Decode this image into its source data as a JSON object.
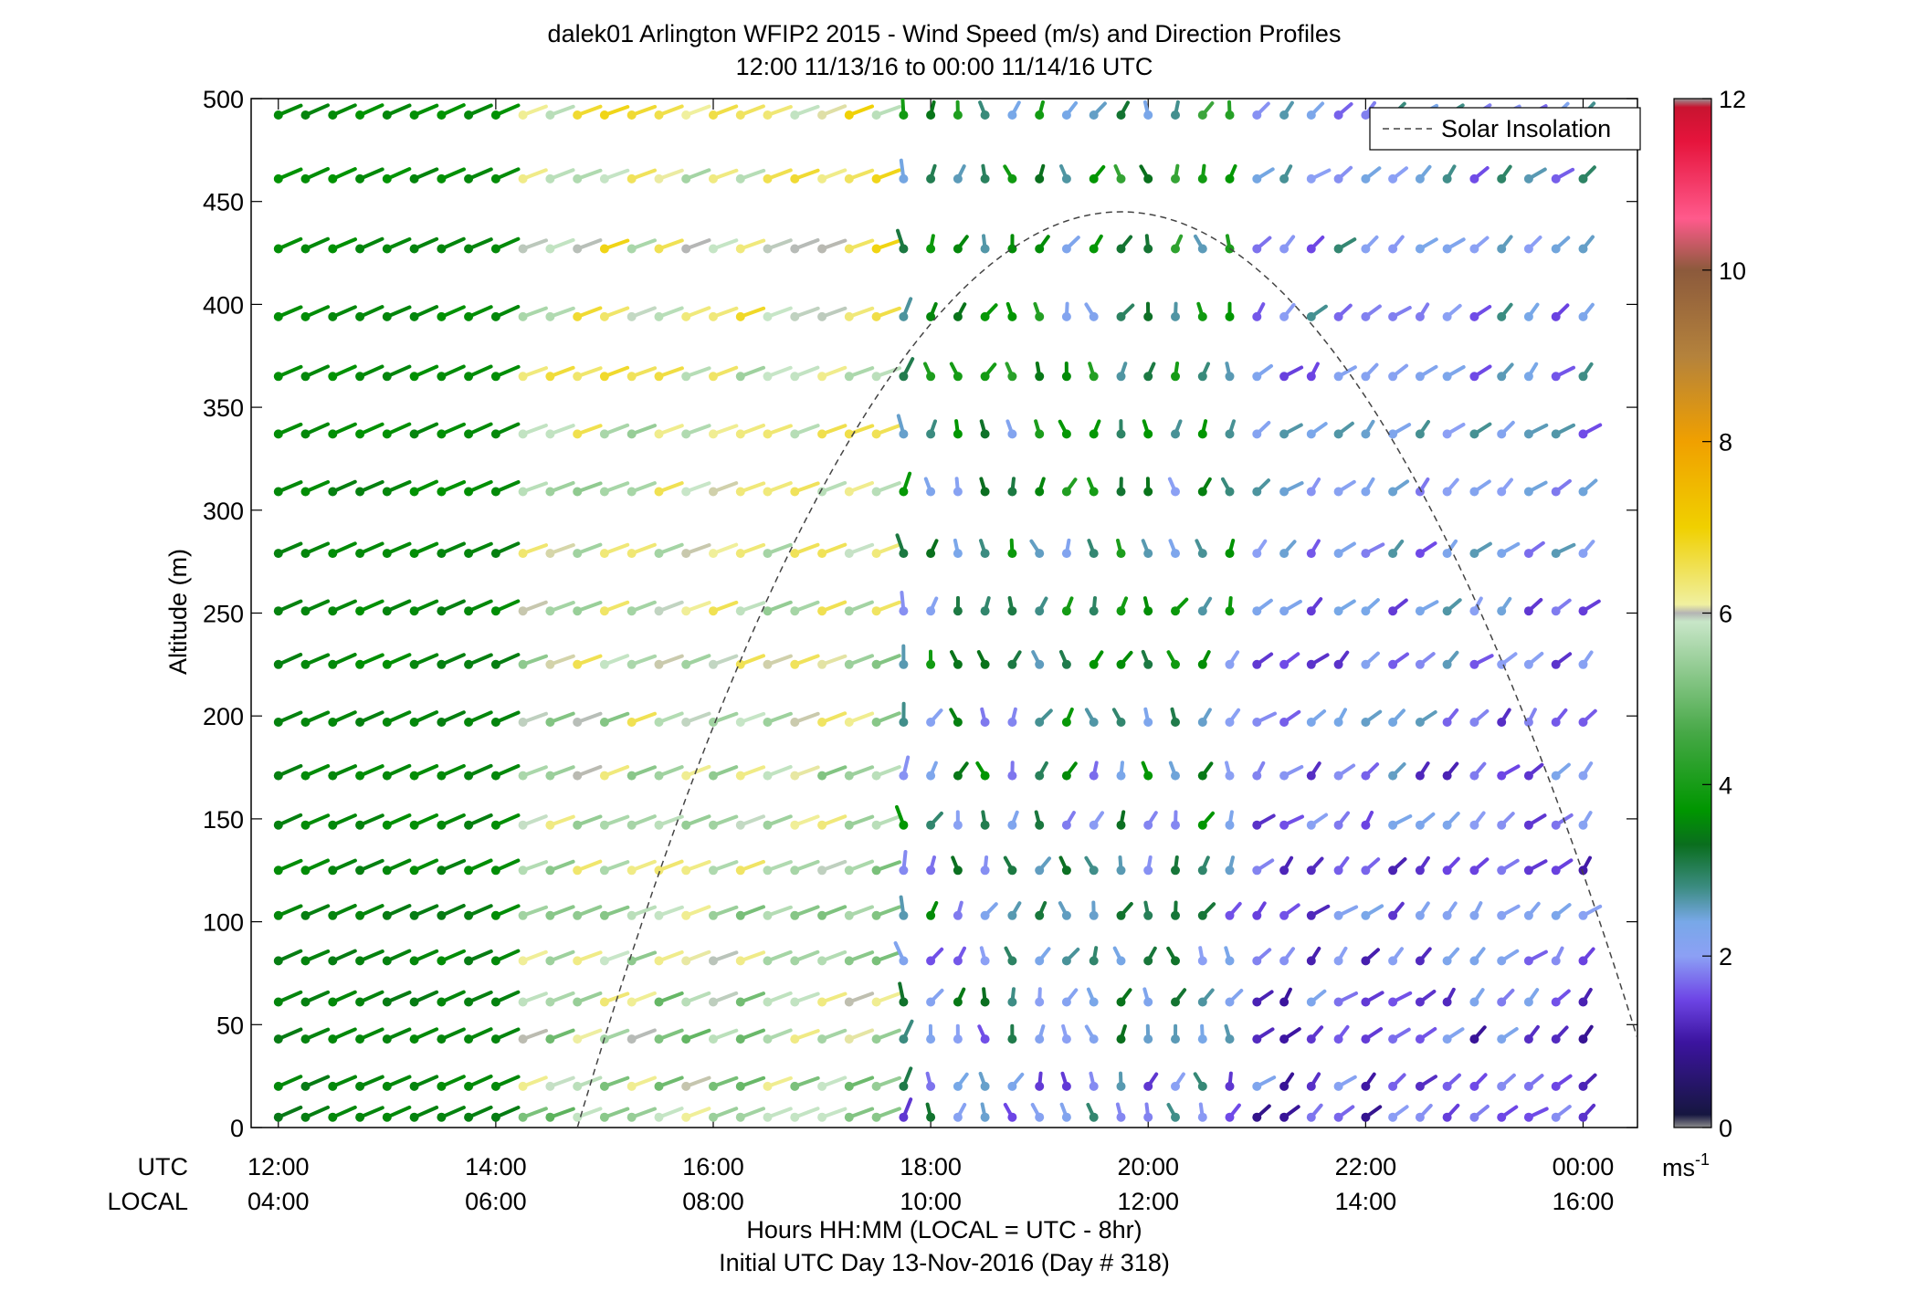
{
  "chart_data": {
    "type": "scatter",
    "subtype": "wind-barb-profile",
    "title": "dalek01 Arlington WFIP2 2015 - Wind Speed (m/s) and Direction Profiles",
    "subtitle": "12:00 11/13/16 to 00:00 11/14/16  UTC",
    "xlabel": "Hours HH:MM  (LOCAL = UTC - 8hr)",
    "xlabel2": "Initial UTC Day 13-Nov-2016 (Day # 318)",
    "ylabel": "Altitude (m)",
    "axis_rows": {
      "utc": "UTC",
      "local": "LOCAL"
    },
    "xlim": [
      11.75,
      24.5
    ],
    "ylim": [
      0,
      500
    ],
    "x_ticks": [
      {
        "value": 12,
        "utc": "12:00",
        "local": "04:00"
      },
      {
        "value": 14,
        "utc": "14:00",
        "local": "06:00"
      },
      {
        "value": 16,
        "utc": "16:00",
        "local": "08:00"
      },
      {
        "value": 18,
        "utc": "18:00",
        "local": "10:00"
      },
      {
        "value": 20,
        "utc": "20:00",
        "local": "12:00"
      },
      {
        "value": 22,
        "utc": "22:00",
        "local": "14:00"
      },
      {
        "value": 24,
        "utc": "00:00",
        "local": "16:00"
      }
    ],
    "y_ticks": [
      {
        "value": 0,
        "label": "0"
      },
      {
        "value": 50,
        "label": "50"
      },
      {
        "value": 100,
        "label": "100"
      },
      {
        "value": 150,
        "label": "150"
      },
      {
        "value": 200,
        "label": "200"
      },
      {
        "value": 250,
        "label": "250"
      },
      {
        "value": 300,
        "label": "300"
      },
      {
        "value": 350,
        "label": "350"
      },
      {
        "value": 400,
        "label": "400"
      },
      {
        "value": 450,
        "label": "450"
      },
      {
        "value": 500,
        "label": "500"
      }
    ],
    "legend": {
      "entry": "Solar Insolation",
      "placement": "top-right",
      "style": "dashed"
    },
    "solar_insolation": {
      "start_hour": 14.75,
      "peak_hour": 19.75,
      "end_hour": 24.5,
      "peak_altitude": 445,
      "end_altitude": 40
    },
    "colorbar": {
      "min": 0,
      "max": 12,
      "ticks": [
        {
          "value": 0,
          "label": "0"
        },
        {
          "value": 2,
          "label": "2"
        },
        {
          "value": 4,
          "label": "4"
        },
        {
          "value": 6,
          "label": "6"
        },
        {
          "value": 8,
          "label": "8"
        },
        {
          "value": 10,
          "label": "10"
        },
        {
          "value": 12,
          "label": "12"
        }
      ],
      "unit_base": "ms",
      "unit_exp": "-1",
      "stops": [
        {
          "v": 0.0,
          "c": "#8c8c8c"
        },
        {
          "v": 0.15,
          "c": "#161640"
        },
        {
          "v": 1.0,
          "c": "#3c14a0"
        },
        {
          "v": 1.5,
          "c": "#6e46e6"
        },
        {
          "v": 2.0,
          "c": "#8ca0f5"
        },
        {
          "v": 2.4,
          "c": "#78a8e8"
        },
        {
          "v": 2.8,
          "c": "#3c8c82"
        },
        {
          "v": 3.3,
          "c": "#0a6e1e"
        },
        {
          "v": 3.7,
          "c": "#009600"
        },
        {
          "v": 4.6,
          "c": "#46a846"
        },
        {
          "v": 5.4,
          "c": "#96cd96"
        },
        {
          "v": 5.9,
          "c": "#c8e6c8"
        },
        {
          "v": 6.0,
          "c": "#b4b4b4"
        },
        {
          "v": 6.1,
          "c": "#f0f0a0"
        },
        {
          "v": 7.0,
          "c": "#f0d000"
        },
        {
          "v": 8.0,
          "c": "#f0a000"
        },
        {
          "v": 9.0,
          "c": "#b4823c"
        },
        {
          "v": 10.0,
          "c": "#8c5a3c"
        },
        {
          "v": 10.6,
          "c": "#ff5a8c"
        },
        {
          "v": 11.5,
          "c": "#e6143c"
        },
        {
          "v": 11.9,
          "c": "#c81430"
        },
        {
          "v": 12.0,
          "c": "#969696"
        }
      ]
    },
    "barb_field": {
      "altitudes": [
        5,
        20,
        43,
        61,
        81,
        103,
        125,
        147,
        171,
        197,
        225,
        251,
        279,
        309,
        337,
        365,
        394,
        427,
        461,
        492
      ],
      "time_start": 12.0,
      "time_step": 0.25,
      "time_count": 49,
      "regimes": [
        {
          "from": 12.0,
          "to": 14.25,
          "speed_low": 3.4,
          "speed_high": 3.7,
          "dir_low": 250,
          "dir_high": 252
        },
        {
          "from": 14.25,
          "to": 17.75,
          "speed_low": 4.8,
          "speed_high": 7.0,
          "dir_low": 255,
          "dir_high": 258
        },
        {
          "from": 17.75,
          "to": 21.0,
          "speed_low": 1.2,
          "speed_high": 4.5,
          "dir_low": 160,
          "dir_high": 210
        },
        {
          "from": 21.0,
          "to": 24.0,
          "speed_low": 0.8,
          "speed_high": 3.0,
          "dir_low": 195,
          "dir_high": 230
        }
      ]
    }
  }
}
